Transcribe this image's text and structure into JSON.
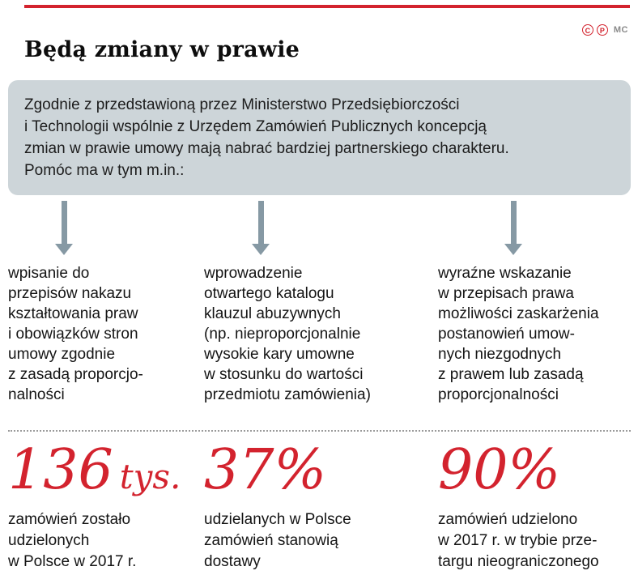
{
  "colors": {
    "accent_red": "#d3232e",
    "box_gray": "#cdd5d9",
    "arrow_gray": "#8699a4"
  },
  "header": {
    "title": "Będą zmiany w prawie",
    "copyright_c": "C",
    "copyright_p": "P",
    "credit": "MC"
  },
  "intro": {
    "text": "Zgodnie z przedstawioną przez Ministerstwo Przedsiębiorczości\ni Technologii wspólnie z Urzędem Zamówień Publicznych koncepcją\nzmian w prawie umowy mają nabrać bardziej partnerskiego charakteru.\nPomóc ma w tym m.in.:"
  },
  "points": [
    {
      "text": "wpisanie do\nprzepisów nakazu\nkształtowania praw\ni obowiązków stron\numowy zgodnie\nz zasadą proporcjo-\nnalności"
    },
    {
      "text": "wprowadzenie\notwartego katalogu\nklauzul abuzywnych\n(np. nieproporcjonalnie\nwysokie kary umowne\nw stosunku do wartości\nprzedmiotu zamówienia)"
    },
    {
      "text": "wyraźne wskazanie\nw przepisach prawa\nmożliwości zaskarżenia\npostanowień umow-\nnych niezgodnych\nz prawem lub zasadą\nproporcjonalności"
    }
  ],
  "stats": [
    {
      "value": "136",
      "unit": "tys.",
      "desc": "zamówień zostało\nudzielonych\nw Polsce w 2017 r."
    },
    {
      "value": "37%",
      "unit": "",
      "desc": "udzielanych w Polsce\nzamówień stanowią\ndostawy"
    },
    {
      "value": "90%",
      "unit": "",
      "desc": "zamówień udzielono\nw 2017 r. w trybie prze-\ntargu nieograniczonego"
    }
  ]
}
